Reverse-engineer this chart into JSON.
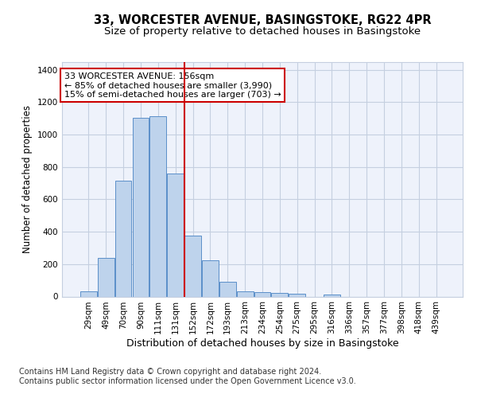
{
  "title_line1": "33, WORCESTER AVENUE, BASINGSTOKE, RG22 4PR",
  "title_line2": "Size of property relative to detached houses in Basingstoke",
  "xlabel": "Distribution of detached houses by size in Basingstoke",
  "ylabel": "Number of detached properties",
  "categories": [
    "29sqm",
    "49sqm",
    "70sqm",
    "90sqm",
    "111sqm",
    "131sqm",
    "152sqm",
    "172sqm",
    "193sqm",
    "213sqm",
    "234sqm",
    "254sqm",
    "275sqm",
    "295sqm",
    "316sqm",
    "336sqm",
    "357sqm",
    "377sqm",
    "398sqm",
    "418sqm",
    "439sqm"
  ],
  "values": [
    30,
    240,
    715,
    1105,
    1115,
    760,
    375,
    225,
    90,
    30,
    25,
    22,
    15,
    0,
    12,
    0,
    0,
    0,
    0,
    0,
    0
  ],
  "bar_color": "#bed3ec",
  "bar_edge_color": "#5b8fc9",
  "annotation_title": "33 WORCESTER AVENUE: 156sqm",
  "annotation_line1": "← 85% of detached houses are smaller (3,990)",
  "annotation_line2": "15% of semi-detached houses are larger (703) →",
  "vline_color": "#cc0000",
  "annotation_box_color": "#cc0000",
  "ylim": [
    0,
    1450
  ],
  "yticks": [
    0,
    200,
    400,
    600,
    800,
    1000,
    1200,
    1400
  ],
  "footer_line1": "Contains HM Land Registry data © Crown copyright and database right 2024.",
  "footer_line2": "Contains public sector information licensed under the Open Government Licence v3.0.",
  "bg_color": "#eef2fb",
  "grid_color": "#c5cfe0",
  "title_fontsize": 10.5,
  "subtitle_fontsize": 9.5,
  "tick_fontsize": 7.5,
  "ylabel_fontsize": 8.5,
  "xlabel_fontsize": 9,
  "annotation_fontsize": 8,
  "footer_fontsize": 7
}
